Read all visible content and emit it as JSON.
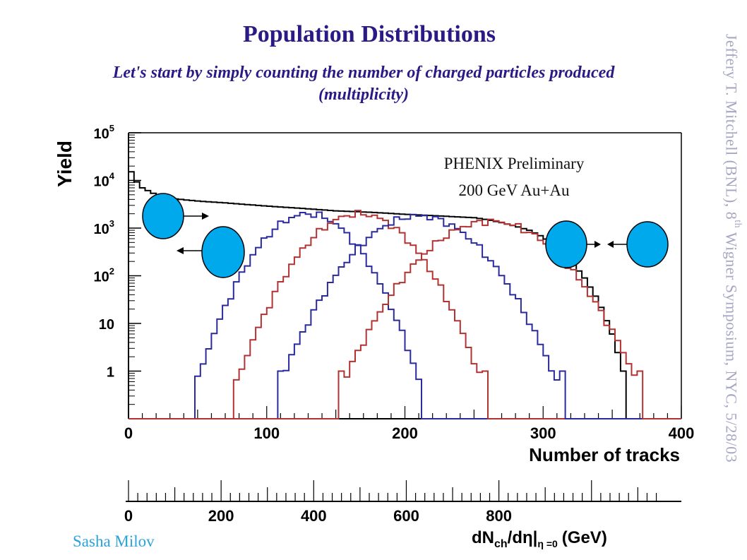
{
  "slide": {
    "title": "Population Distributions",
    "subtitle_line1": "Let's start by simply counting the number of charged particles produced",
    "subtitle_line2": "(multiplicity)",
    "vertical_credit_a": "Jeffery T. Mitchell (BNL), 8",
    "vertical_credit_sup": "th",
    "vertical_credit_b": " Wigner Symposium, NYC, 5/28/03",
    "author": "Sasha Milov",
    "colors": {
      "title": "#2b1a86",
      "credit": "#a7a7c4",
      "author": "#2aa2dc",
      "blue_series": "#2a2a9c",
      "red_series": "#b23232",
      "total_series": "#000000",
      "nucleus": "#00a8ec"
    }
  },
  "chart_data": {
    "type": "line",
    "annotation_line1": "PHENIX Preliminary",
    "annotation_line2": "200 GeV Au+Au",
    "ylabel": "Yield",
    "xlabel": "Number of tracks",
    "x2label_main": "dN",
    "x2label_sub1": "ch",
    "x2label_mid": "/d",
    "x2label_eta": "η",
    "x2label_bar": "|",
    "x2label_sub2": "η =0",
    "x2label_unit": "(GeV)",
    "xlim": [
      0,
      400
    ],
    "ylim": [
      0.1,
      100000
    ],
    "yscale": "log",
    "ytick_labels": [
      {
        "base": "10",
        "exp": "5",
        "value": 100000
      },
      {
        "base": "10",
        "exp": "4",
        "value": 10000
      },
      {
        "base": "10",
        "exp": "3",
        "value": 1000
      },
      {
        "base": "10",
        "exp": "2",
        "value": 100
      },
      {
        "base": "10",
        "exp": "",
        "value": 10
      },
      {
        "base": "1",
        "exp": "",
        "value": 1
      }
    ],
    "xticks": [
      0,
      100,
      200,
      300,
      400
    ],
    "x2ticks": [
      0,
      200,
      400,
      600,
      800
    ],
    "x2scale_per_track": 0.335,
    "series": [
      {
        "color": "total",
        "points": [
          [
            0,
            20000
          ],
          [
            5,
            10000
          ],
          [
            10,
            7000
          ],
          [
            20,
            5000
          ],
          [
            30,
            4200
          ],
          [
            50,
            3700
          ],
          [
            75,
            3300
          ],
          [
            100,
            2900
          ],
          [
            125,
            2600
          ],
          [
            150,
            2300
          ],
          [
            175,
            2150
          ],
          [
            200,
            1950
          ],
          [
            225,
            1800
          ],
          [
            250,
            1650
          ],
          [
            260,
            1500
          ],
          [
            270,
            1300
          ],
          [
            280,
            1100
          ],
          [
            290,
            900
          ],
          [
            300,
            650
          ],
          [
            310,
            400
          ],
          [
            320,
            210
          ],
          [
            330,
            90
          ],
          [
            340,
            30
          ],
          [
            350,
            6
          ],
          [
            358,
            1
          ]
        ]
      },
      {
        "color": "blue",
        "mean": 130,
        "sigma": 20,
        "peak": 2000
      },
      {
        "color": "red",
        "mean": 167,
        "sigma": 22,
        "peak": 2000
      },
      {
        "color": "blue",
        "mean": 210,
        "sigma": 25,
        "peak": 1800
      },
      {
        "color": "red",
        "mean": 262,
        "sigma": 27,
        "peak": 1400
      }
    ]
  }
}
